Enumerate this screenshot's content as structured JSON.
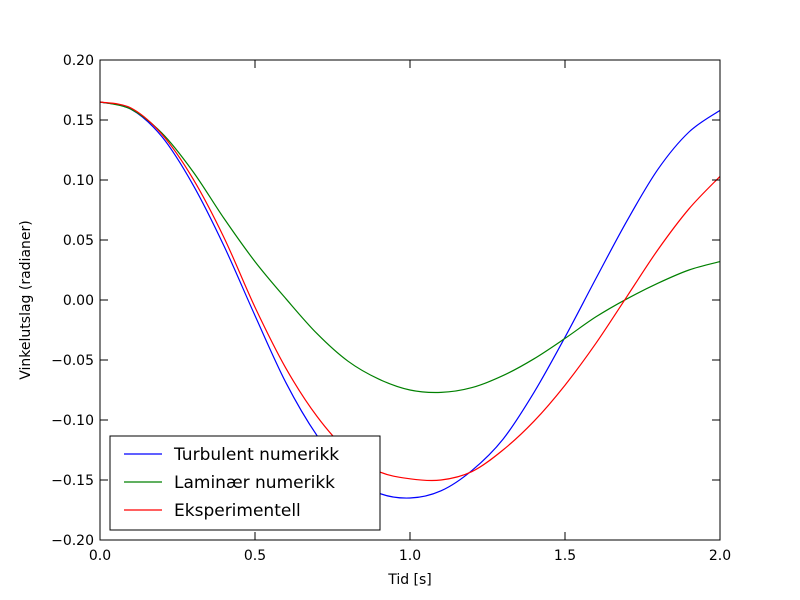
{
  "chart_data": {
    "type": "line",
    "xlabel": "Tid [s]",
    "ylabel": "Vinkelutslag (radianer)",
    "xlim": [
      0.0,
      2.0
    ],
    "ylim": [
      -0.2,
      0.2
    ],
    "x_ticks": [
      "0.0",
      "0.5",
      "1.0",
      "1.5",
      "2.0"
    ],
    "x_tick_values": [
      0.0,
      0.5,
      1.0,
      1.5,
      2.0
    ],
    "y_ticks": [
      "0.20",
      "0.15",
      "0.10",
      "0.05",
      "0.00",
      "−0.05",
      "−0.10",
      "−0.15",
      "−0.20"
    ],
    "y_tick_values": [
      0.2,
      0.15,
      0.1,
      0.05,
      0.0,
      -0.05,
      -0.1,
      -0.15,
      -0.2
    ],
    "grid": false,
    "legend_position": "lower-left",
    "x": [
      0.0,
      0.1,
      0.2,
      0.3,
      0.4,
      0.5,
      0.6,
      0.7,
      0.8,
      0.9,
      1.0,
      1.1,
      1.2,
      1.3,
      1.4,
      1.5,
      1.6,
      1.7,
      1.8,
      1.9,
      2.0
    ],
    "series": [
      {
        "name": "Turbulent numerikk",
        "color": "#0000ff",
        "values": [
          0.165,
          0.159,
          0.136,
          0.096,
          0.045,
          -0.013,
          -0.069,
          -0.113,
          -0.145,
          -0.161,
          -0.165,
          -0.159,
          -0.142,
          -0.116,
          -0.077,
          -0.031,
          0.018,
          0.066,
          0.109,
          0.14,
          0.158
        ]
      },
      {
        "name": "Laminær numerikk",
        "color": "#008000",
        "values": [
          0.165,
          0.159,
          0.139,
          0.107,
          0.068,
          0.032,
          0.001,
          -0.028,
          -0.051,
          -0.066,
          -0.075,
          -0.077,
          -0.073,
          -0.063,
          -0.049,
          -0.032,
          -0.014,
          0.001,
          0.014,
          0.025,
          0.032
        ]
      },
      {
        "name": "Eksperimentell",
        "color": "#ff0000",
        "values": [
          0.165,
          0.16,
          0.138,
          0.101,
          0.052,
          -0.006,
          -0.057,
          -0.097,
          -0.126,
          -0.143,
          -0.149,
          -0.15,
          -0.143,
          -0.125,
          -0.101,
          -0.071,
          -0.036,
          0.003,
          0.042,
          0.076,
          0.103
        ]
      }
    ]
  }
}
